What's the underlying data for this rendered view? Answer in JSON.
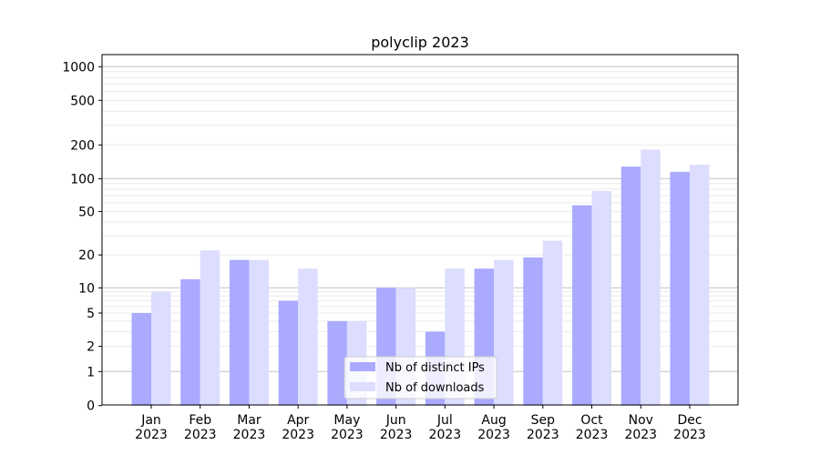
{
  "chart_data": {
    "type": "bar",
    "title": "polyclip 2023",
    "xlabel": "",
    "ylabel": "",
    "yscale": "symlog",
    "ylim": [
      0,
      1300
    ],
    "grid": true,
    "legend_position": "bottom-center",
    "categories": [
      "Jan\n2023",
      "Feb\n2023",
      "Mar\n2023",
      "Apr\n2023",
      "May\n2023",
      "Jun\n2023",
      "Jul\n2023",
      "Aug\n2023",
      "Sep\n2023",
      "Oct\n2023",
      "Nov\n2023",
      "Dec\n2023"
    ],
    "yticks": [
      0,
      1,
      2,
      5,
      10,
      20,
      50,
      100,
      200,
      500,
      1000
    ],
    "series": [
      {
        "name": "Nb of distinct IPs",
        "color": "#aaaaff",
        "values": [
          5,
          12,
          18,
          7,
          4,
          10,
          3,
          15,
          19,
          57,
          128,
          115
        ]
      },
      {
        "name": "Nb of downloads",
        "color": "#ddddff",
        "values": [
          9,
          22,
          18,
          15,
          4,
          10,
          15,
          18,
          27,
          77,
          182,
          133
        ]
      }
    ]
  }
}
